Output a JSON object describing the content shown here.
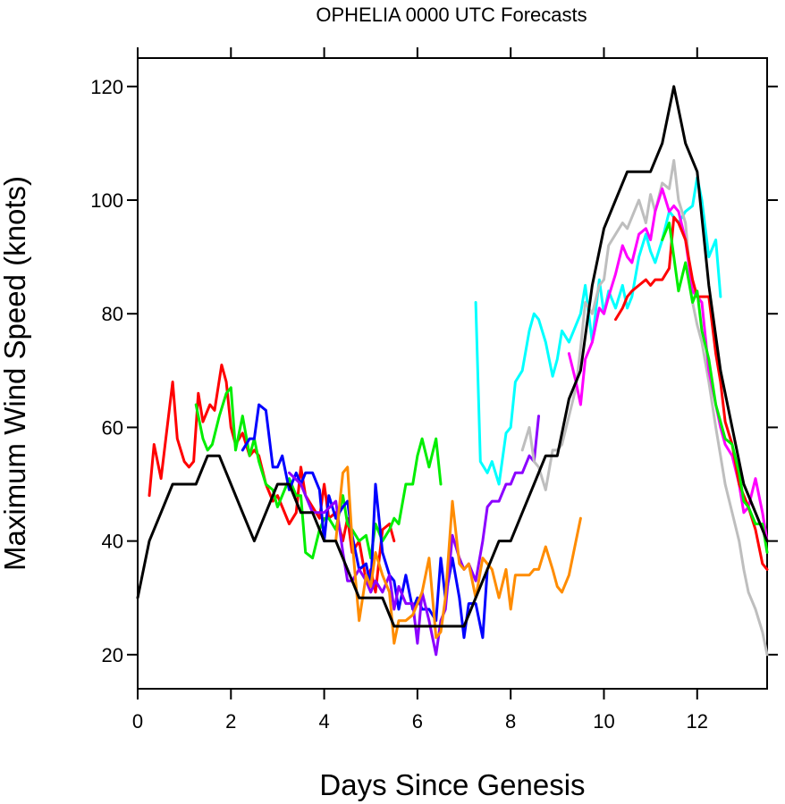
{
  "chart_data": {
    "type": "line",
    "title": "OPHELIA 0000 UTC Forecasts",
    "xlabel": "Days Since Genesis",
    "ylabel": "Maximum Wind Speed (knots)",
    "xlim": [
      0,
      13.5
    ],
    "ylim": [
      14,
      125
    ],
    "xticks": [
      0,
      2,
      4,
      6,
      8,
      10,
      12
    ],
    "yticks": [
      20,
      40,
      60,
      80,
      100,
      120
    ],
    "grid": false,
    "series": [
      {
        "color": "#000000",
        "role": "best-track",
        "x": [
          0,
          0.25,
          0.5,
          0.75,
          1,
          1.25,
          1.5,
          1.75,
          2,
          2.25,
          2.5,
          2.75,
          3,
          3.25,
          3.5,
          3.75,
          4,
          4.25,
          4.5,
          4.75,
          5,
          5.25,
          5.5,
          5.75,
          6,
          6.25,
          6.5,
          6.75,
          7,
          7.25,
          7.5,
          7.75,
          8,
          8.25,
          8.5,
          8.75,
          9,
          9.25,
          9.5,
          9.75,
          10,
          10.25,
          10.5,
          10.75,
          11,
          11.25,
          11.5,
          11.75,
          12,
          12.25,
          12.5,
          12.75,
          13,
          13.25,
          13.5
        ],
        "y": [
          30,
          40,
          45,
          50,
          50,
          50,
          55,
          55,
          50,
          45,
          40,
          45,
          50,
          50,
          45,
          45,
          40,
          40,
          35,
          30,
          30,
          30,
          25,
          25,
          25,
          25,
          25,
          25,
          25,
          30,
          35,
          40,
          40,
          45,
          50,
          55,
          55,
          65,
          70,
          85,
          95,
          100,
          105,
          105,
          105,
          110,
          120,
          110,
          105,
          85,
          70,
          60,
          50,
          45,
          40
        ]
      },
      {
        "color": "#ff0000",
        "x": [
          0.25,
          0.35,
          0.5,
          0.75,
          0.85,
          1,
          1.1,
          1.2,
          1.3,
          1.4,
          1.55,
          1.65,
          1.8,
          1.9,
          2,
          2.1,
          2.25,
          2.4,
          2.5,
          2.6,
          2.75,
          2.9,
          3,
          3.1,
          3.25,
          3.4,
          3.5,
          3.6,
          3.75,
          3.9,
          4,
          4.1,
          4.25,
          4.4,
          4.5,
          4.6,
          4.75,
          4.9,
          5,
          5.1,
          5.25,
          5.4,
          5.5
        ],
        "y": [
          48,
          57,
          51,
          68,
          58,
          54,
          53,
          54,
          66,
          61,
          64,
          63,
          71,
          68,
          60,
          57,
          59,
          55,
          56,
          55,
          50,
          47,
          48,
          46,
          43,
          45,
          53,
          48,
          46,
          44,
          50,
          44,
          45,
          40,
          44,
          38,
          40,
          33,
          35,
          31,
          42,
          43,
          40
        ]
      },
      {
        "color": "#00ee00",
        "x": [
          1.25,
          1.4,
          1.5,
          1.6,
          1.75,
          1.9,
          2,
          2.1,
          2.25,
          2.4,
          2.5,
          2.6,
          2.75,
          2.9,
          3,
          3.1,
          3.25,
          3.4,
          3.5,
          3.6,
          3.75,
          3.9,
          4,
          4.1,
          4.25,
          4.4,
          4.5,
          4.6,
          4.75,
          4.9,
          5,
          5.1,
          5.25,
          5.4,
          5.5,
          5.6,
          5.75,
          5.9,
          6,
          6.1,
          6.25,
          6.4,
          6.5
        ],
        "y": [
          64,
          58,
          56,
          57,
          62,
          66,
          67,
          56,
          62,
          55,
          58,
          54,
          50,
          49,
          46,
          48,
          51,
          48,
          48,
          38,
          37,
          42,
          44,
          44,
          42,
          48,
          43,
          42,
          40,
          41,
          37,
          43,
          40,
          42,
          44,
          43,
          50,
          50,
          55,
          58,
          53,
          58,
          50
        ]
      },
      {
        "color": "#0000ff",
        "x": [
          2.25,
          2.4,
          2.5,
          2.6,
          2.75,
          2.9,
          3,
          3.1,
          3.25,
          3.4,
          3.5,
          3.6,
          3.75,
          3.9,
          4,
          4.1,
          4.25,
          4.4,
          4.5,
          4.6,
          4.75,
          4.9,
          5,
          5.1,
          5.25,
          5.4,
          5.5,
          5.6,
          5.75,
          5.9,
          6,
          6.1,
          6.25,
          6.4,
          6.5,
          6.6,
          6.75,
          6.9,
          7,
          7.1,
          7.25,
          7.4,
          7.5
        ],
        "y": [
          56,
          58,
          58,
          64,
          63,
          53,
          53,
          55,
          49,
          52,
          50,
          52,
          52,
          49,
          40,
          48,
          44,
          46,
          47,
          41,
          35,
          36,
          32,
          50,
          38,
          34,
          33,
          28,
          34,
          28,
          30,
          28,
          28,
          26,
          37,
          30,
          37,
          30,
          23,
          29,
          29,
          23,
          35
        ]
      },
      {
        "color": "#8b00ff",
        "x": [
          3.25,
          3.5,
          3.75,
          4,
          4.25,
          4.4,
          4.5,
          4.6,
          4.75,
          4.9,
          5,
          5.1,
          5.25,
          5.4,
          5.5,
          5.6,
          5.75,
          5.9,
          6,
          6.1,
          6.25,
          6.4,
          6.5,
          6.6,
          6.75,
          6.9,
          7,
          7.1,
          7.25,
          7.4,
          7.5,
          7.6,
          7.75,
          7.9,
          8,
          8.1,
          8.25,
          8.4,
          8.5,
          8.6
        ],
        "y": [
          52,
          50,
          45,
          45,
          47,
          38,
          33,
          33,
          35,
          33,
          31,
          33,
          31,
          34,
          28,
          32,
          29,
          29,
          22,
          31,
          26,
          20,
          26,
          28,
          41,
          37,
          35,
          36,
          33,
          40,
          46,
          47,
          47,
          50,
          50,
          52,
          52,
          55,
          54,
          62
        ]
      },
      {
        "color": "#ff8c00",
        "x": [
          4.25,
          4.4,
          4.5,
          4.6,
          4.75,
          4.9,
          5,
          5.1,
          5.25,
          5.4,
          5.5,
          5.6,
          5.75,
          5.9,
          6,
          6.1,
          6.25,
          6.4,
          6.5,
          6.6,
          6.75,
          6.9,
          7,
          7.1,
          7.25,
          7.4,
          7.5,
          7.6,
          7.75,
          7.9,
          8,
          8.1,
          8.25,
          8.4,
          8.5,
          8.6,
          8.75,
          8.9,
          9,
          9.1,
          9.25,
          9.4,
          9.5
        ],
        "y": [
          40,
          52,
          53,
          40,
          26,
          34,
          32,
          38,
          34,
          31,
          22,
          26,
          26,
          27,
          29,
          31,
          37,
          23,
          24,
          30,
          47,
          36,
          35,
          36,
          30,
          37,
          36,
          35,
          30,
          35,
          28,
          34,
          34,
          34,
          35,
          35,
          39,
          35,
          32,
          31,
          34,
          40,
          44
        ]
      },
      {
        "color": "#00ffff",
        "x": [
          7.25,
          7.35,
          7.5,
          7.6,
          7.75,
          7.9,
          8,
          8.1,
          8.25,
          8.4,
          8.5,
          8.6,
          8.75,
          8.9,
          9,
          9.1,
          9.25,
          9.4,
          9.5,
          9.6,
          9.75,
          9.9,
          10,
          10.1,
          10.25,
          10.4,
          10.5,
          10.6,
          10.75,
          10.9,
          11,
          11.1,
          11.25,
          11.4,
          11.5,
          11.6,
          11.75,
          11.9,
          12,
          12.1,
          12.25,
          12.4,
          12.5
        ],
        "y": [
          82,
          54,
          52,
          54,
          50,
          59,
          60,
          68,
          70,
          77,
          80,
          79,
          75,
          69,
          72,
          77,
          75,
          78,
          80,
          85,
          75,
          86,
          80,
          84,
          81,
          85,
          81,
          83,
          90,
          94,
          91,
          89,
          93,
          98,
          97,
          96,
          98,
          99,
          104,
          100,
          90,
          93,
          83
        ]
      },
      {
        "color": "#bebebe",
        "x": [
          8.25,
          8.4,
          8.5,
          8.6,
          8.75,
          8.9,
          9,
          9.1,
          9.25,
          9.4,
          9.5,
          9.6,
          9.75,
          9.9,
          10,
          10.1,
          10.25,
          10.4,
          10.5,
          10.6,
          10.75,
          10.9,
          11,
          11.1,
          11.25,
          11.4,
          11.5,
          11.6,
          11.75,
          11.9,
          12,
          12.1,
          12.25,
          12.4,
          12.5,
          12.6,
          12.75,
          12.9,
          13,
          13.1,
          13.25,
          13.4,
          13.5
        ],
        "y": [
          56,
          60,
          54,
          53,
          49,
          56,
          56,
          57,
          62,
          67,
          74,
          82,
          80,
          85,
          86,
          92,
          94,
          96,
          95,
          97,
          100,
          96,
          101,
          98,
          103,
          102,
          107,
          100,
          96,
          82,
          78,
          75,
          68,
          60,
          55,
          50,
          45,
          40,
          35,
          31,
          28,
          24,
          20
        ]
      },
      {
        "color": "#ff00ff",
        "x": [
          9.25,
          9.4,
          9.5,
          9.6,
          9.75,
          9.9,
          10,
          10.1,
          10.25,
          10.4,
          10.5,
          10.6,
          10.75,
          10.9,
          11,
          11.1,
          11.25,
          11.4,
          11.5,
          11.6,
          11.75,
          11.9,
          12,
          12.1,
          12.25,
          12.4,
          12.5,
          12.6,
          12.75,
          12.9,
          13,
          13.1,
          13.25,
          13.4,
          13.5
        ],
        "y": [
          73,
          68,
          64,
          72,
          75,
          81,
          80,
          83,
          87,
          92,
          90,
          89,
          94,
          95,
          93,
          98,
          102,
          98,
          99,
          98,
          93,
          84,
          83,
          82,
          70,
          64,
          60,
          57,
          55,
          50,
          45,
          46,
          51,
          45,
          40
        ]
      },
      {
        "color": "#ff0000",
        "x": [
          10.25,
          10.4,
          10.5,
          10.6,
          10.75,
          10.9,
          11,
          11.1,
          11.25,
          11.4,
          11.5,
          11.6,
          11.75,
          11.9,
          12,
          12.1,
          12.25,
          12.4,
          12.5,
          12.6,
          12.75,
          12.9,
          13,
          13.1,
          13.25,
          13.4,
          13.5
        ],
        "y": [
          79,
          81,
          83,
          84,
          85,
          86,
          85,
          86,
          86,
          88,
          97,
          96,
          93,
          86,
          83,
          83,
          83,
          73,
          68,
          61,
          57,
          50,
          48,
          46,
          42,
          36,
          35
        ]
      },
      {
        "color": "#00ee00",
        "x": [
          11.25,
          11.4,
          11.5,
          11.6,
          11.75,
          11.9,
          12,
          12.1,
          12.25,
          12.4,
          12.5,
          12.6,
          12.75,
          12.9,
          13,
          13.1,
          13.25,
          13.4,
          13.5
        ],
        "y": [
          93,
          96,
          90,
          84,
          89,
          82,
          84,
          77,
          72,
          64,
          61,
          58,
          57,
          52,
          47,
          46,
          43,
          43,
          38
        ]
      }
    ]
  }
}
